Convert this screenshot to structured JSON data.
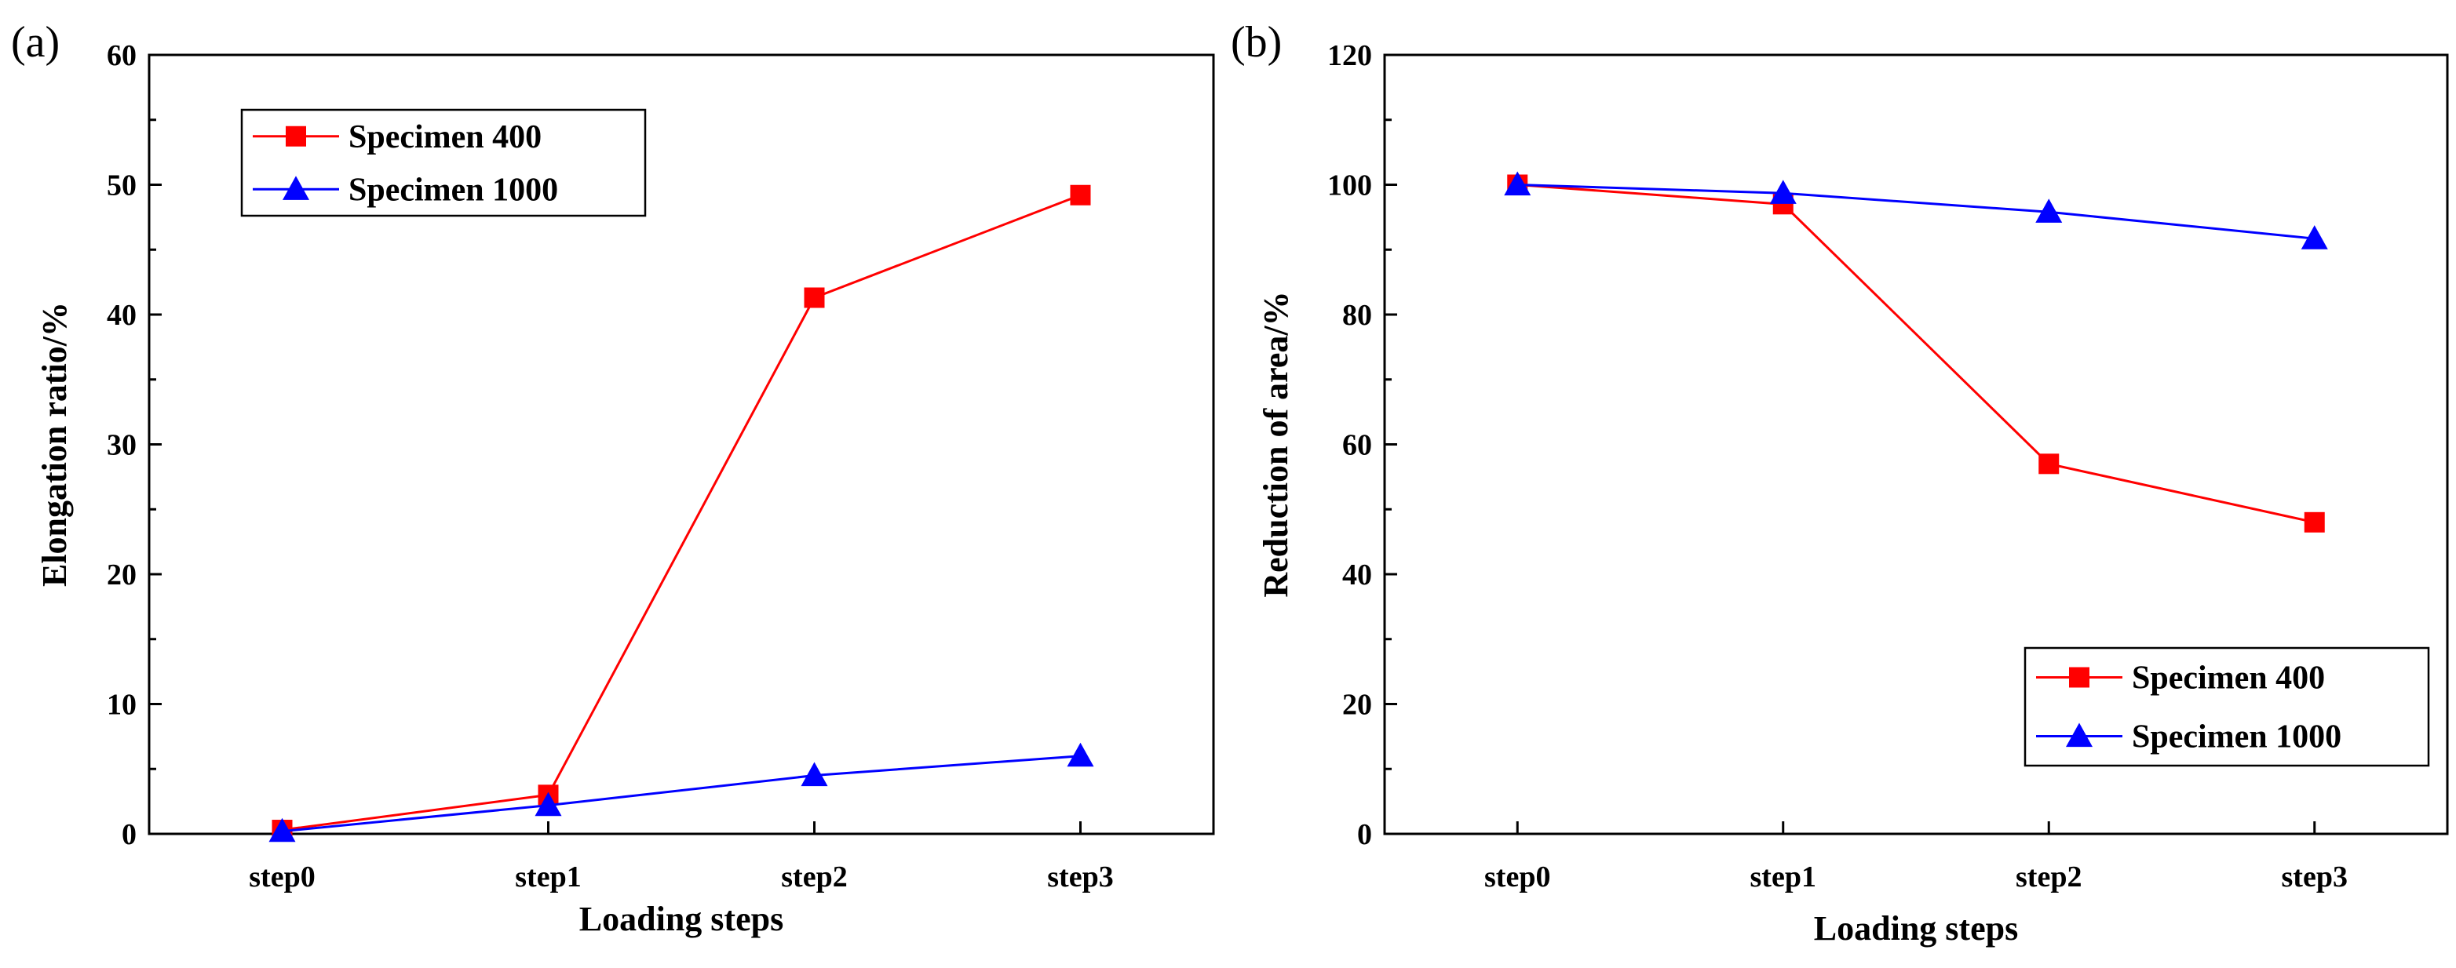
{
  "chart_data": [
    {
      "panel_label": "(a)",
      "type": "line",
      "categories": [
        "step0",
        "step1",
        "step2",
        "step3"
      ],
      "series": [
        {
          "name": "Specimen 400",
          "color": "#ff0000",
          "marker": "square",
          "values": [
            0.3,
            3.0,
            41.3,
            49.2
          ]
        },
        {
          "name": "Specimen 1000",
          "color": "#0000ff",
          "marker": "triangle",
          "values": [
            0.2,
            2.2,
            4.5,
            6.0
          ]
        }
      ],
      "xlabel": "Loading steps",
      "ylabel": "Elongation ratio/%",
      "ylim": [
        0,
        60
      ],
      "yticks": [
        0,
        10,
        20,
        30,
        40,
        50,
        60
      ],
      "legend_position": "top-left",
      "grid": false
    },
    {
      "panel_label": "(b)",
      "type": "line",
      "categories": [
        "step0",
        "step1",
        "step2",
        "step3"
      ],
      "series": [
        {
          "name": "Specimen 400",
          "color": "#ff0000",
          "marker": "square",
          "values": [
            100,
            97,
            57,
            48
          ]
        },
        {
          "name": "Specimen 1000",
          "color": "#0000ff",
          "marker": "triangle",
          "values": [
            100,
            98.7,
            95.8,
            91.7
          ]
        }
      ],
      "xlabel": "Loading steps",
      "ylabel": "Reduction of area/%",
      "ylim": [
        0,
        120
      ],
      "yticks": [
        0,
        20,
        40,
        60,
        80,
        100,
        120
      ],
      "legend_position": "bottom-right",
      "grid": false
    }
  ]
}
